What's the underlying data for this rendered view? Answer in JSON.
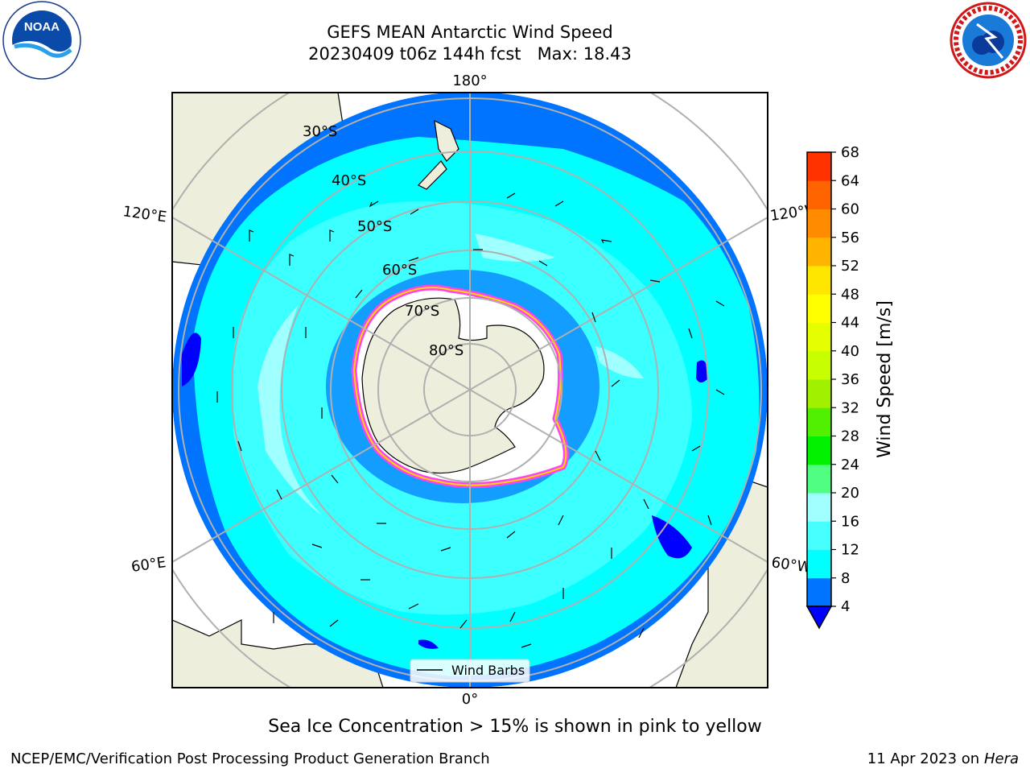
{
  "title": {
    "line1": "GEFS MEAN Antarctic Wind Speed",
    "line2": "20230409 t06z 144h fcst   Max: 18.43"
  },
  "logos": {
    "noaa": {
      "text": "NOAA",
      "icon": "noaa-logo-icon"
    },
    "nws": {
      "icon": "nws-logo-icon"
    }
  },
  "map": {
    "projection": "south-polar-stereographic",
    "longitude_labels": {
      "top": "180°",
      "bottom": "0°",
      "upper_left": "120°E",
      "upper_right": "120°W",
      "lower_left": "60°E",
      "lower_right": "60°W"
    },
    "latitude_labels": [
      "30°S",
      "40°S",
      "50°S",
      "60°S",
      "70°S",
      "80°S"
    ],
    "legend_label": "Wind Barbs"
  },
  "colorbar": {
    "label": "Wind Speed [m/s]",
    "ticks": [
      "4",
      "8",
      "12",
      "16",
      "20",
      "24",
      "28",
      "32",
      "36",
      "40",
      "44",
      "48",
      "52",
      "56",
      "60",
      "64",
      "68"
    ],
    "colors": [
      "#0073ff",
      "#00ffff",
      "#46ffff",
      "#a0ffff",
      "#50ff82",
      "#00f000",
      "#50f000",
      "#a0f000",
      "#c8ff00",
      "#e6ff00",
      "#ffff00",
      "#ffe600",
      "#ffb400",
      "#ff8c00",
      "#ff6400",
      "#ff3200",
      "#ff0000"
    ],
    "extend_color": "#0000ff"
  },
  "caption": "Sea Ice Concentration > 15% is shown in pink to yellow",
  "footer": {
    "credit": "NCEP/EMC/Verification Post Processing Product Generation Branch",
    "date": "11 Apr 2023 on",
    "machine": "Hera"
  },
  "colors": {
    "land": "#eeeedc",
    "ocean_base": "#00ffff",
    "ocean_low": "#0073ff",
    "ocean_mid": "#46ffff",
    "ocean_high": "#a0ffff",
    "ice": "#ffffff",
    "ice_edge": "#ff44ee",
    "grid": "#b0b0b0"
  }
}
